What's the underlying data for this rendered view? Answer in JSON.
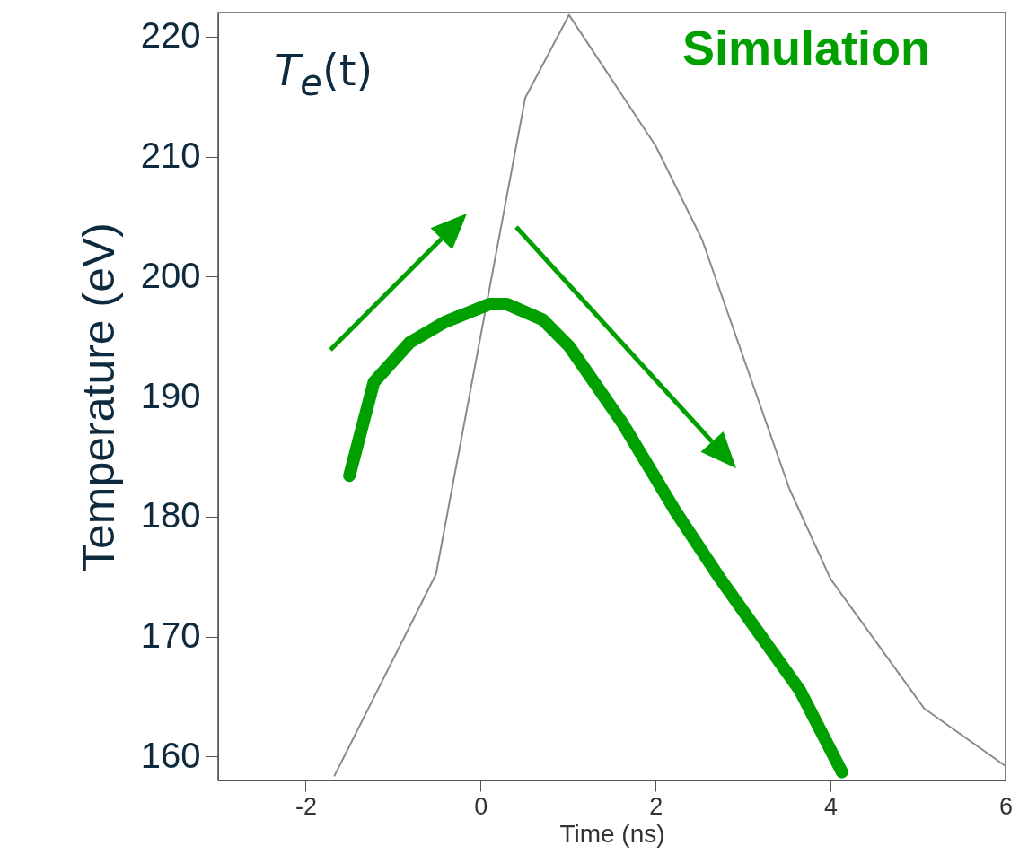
{
  "chart_data": {
    "type": "line",
    "xlabel": "Time (ns)",
    "ylabel": "Temperature (eV)",
    "annotations": [
      "T$_{e}$(t)",
      "Simulation"
    ],
    "xlim": [
      -3,
      6
    ],
    "xticks": [
      -2,
      0,
      2,
      4,
      6
    ],
    "ylim": [
      158,
      222
    ],
    "yticks": [
      160,
      170,
      180,
      190,
      200,
      210,
      220
    ],
    "marker": "none",
    "line_style": "solid",
    "series": [
      {
        "color": "#8a8a8a",
        "x": [
          -1.67,
          -0.51,
          0.51,
          1.01,
          2.0,
          2.53,
          3.53,
          4.0,
          5.07,
          6.0
        ],
        "values": [
          158.4,
          175.2,
          214.9,
          221.8,
          210.9,
          203.1,
          182.3,
          174.8,
          164,
          159.2
        ]
      },
      {
        "color": "#00a000",
        "x": [
          -1.5,
          -1.22,
          -0.81,
          -0.41,
          0.1,
          0.3,
          0.71,
          1.01,
          1.62,
          2.23,
          2.74,
          3.14,
          3.65,
          4.13
        ],
        "values": [
          183.4,
          191.2,
          194.5,
          196.2,
          197.7,
          197.7,
          196.4,
          194.2,
          187.8,
          180.4,
          174.8,
          170.7,
          165.5,
          158.7
        ]
      }
    ]
  }
}
